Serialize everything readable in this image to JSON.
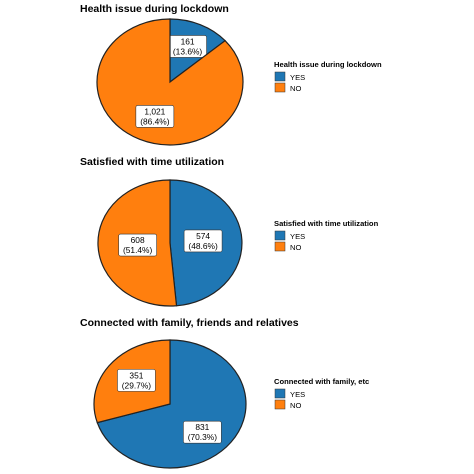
{
  "chart_data": [
    {
      "type": "pie",
      "title": "Health issue during lockdown",
      "legend_title": "Health issue during lockdown",
      "legend_position": "right",
      "categories": [
        "YES",
        "NO"
      ],
      "values": [
        161,
        1021
      ],
      "value_labels": [
        "161",
        "1,021"
      ],
      "percent_labels": [
        "(13.6%)",
        "(86.4%)"
      ],
      "colors": [
        "#1f77b4",
        "#ff7f0e"
      ]
    },
    {
      "type": "pie",
      "title": "Satisfied with time utilization",
      "legend_title": "Satisfied with time utilization",
      "legend_position": "right",
      "categories": [
        "YES",
        "NO"
      ],
      "values": [
        574,
        608
      ],
      "value_labels": [
        "574",
        "608"
      ],
      "percent_labels": [
        "(48.6%)",
        "(51.4%)"
      ],
      "colors": [
        "#1f77b4",
        "#ff7f0e"
      ]
    },
    {
      "type": "pie",
      "title": "Connected with family, friends and relatives",
      "legend_title": "Connected with family, etc",
      "legend_position": "right",
      "categories": [
        "YES",
        "NO"
      ],
      "values": [
        831,
        351
      ],
      "value_labels": [
        "831",
        "351"
      ],
      "percent_labels": [
        "(70.3%)",
        "(29.7%)"
      ],
      "colors": [
        "#1f77b4",
        "#ff7f0e"
      ]
    }
  ]
}
